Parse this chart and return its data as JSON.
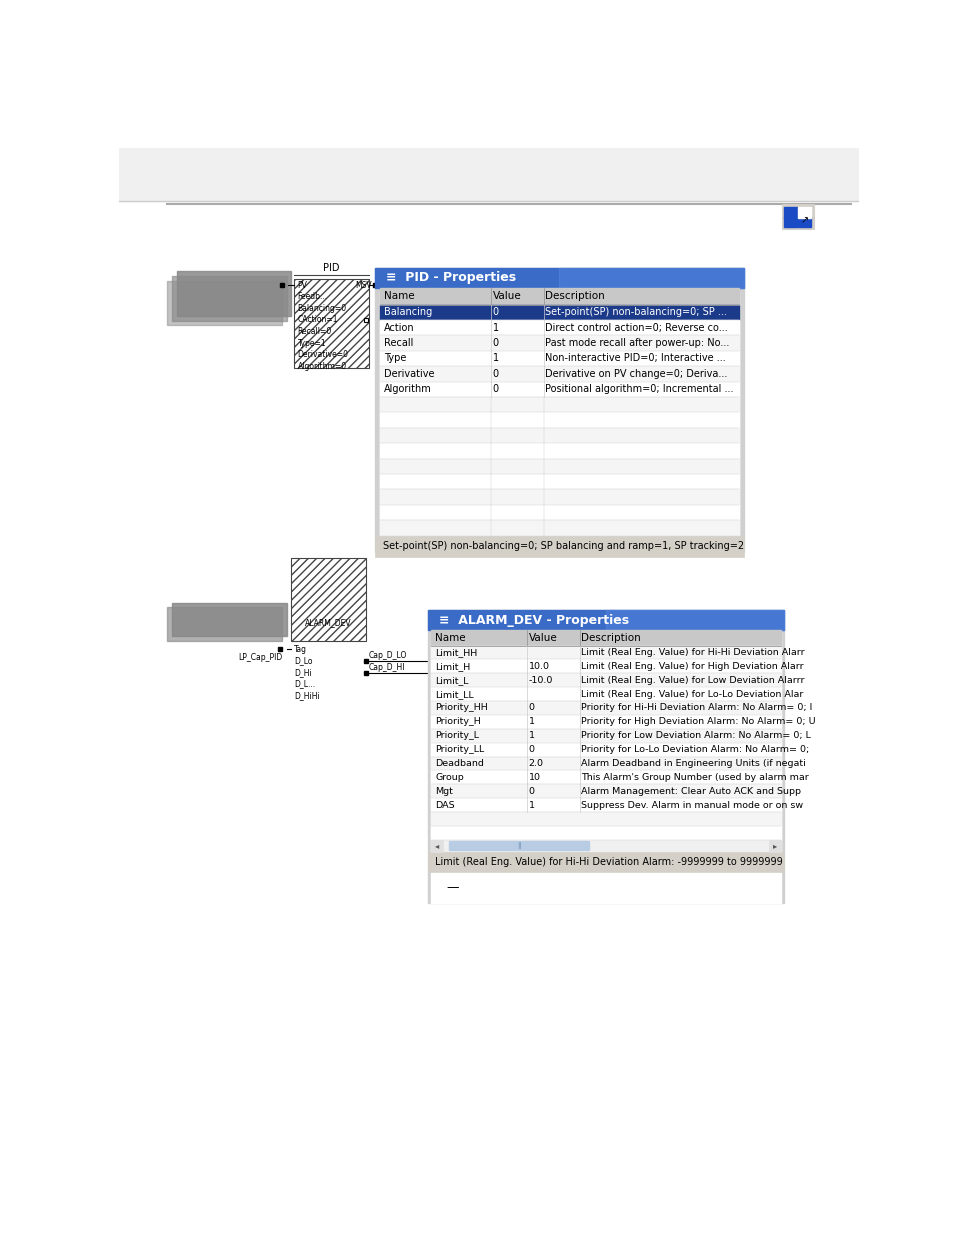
{
  "page_bg": "#ffffff",
  "pid_props": {
    "title": "PID - Properties",
    "title_bg": "#3a6bc7",
    "title_fg": "#ffffff",
    "header_bg": "#c8c8c8",
    "row_bg_highlight": "#1c3a8a",
    "row_fg_highlight": "#ffffff",
    "footer_bg": "#d4d0c8",
    "footer_text": "Set-point(SP) non-balancing=0; SP balancing and ramp=1, SP tracking=2",
    "col_names": [
      "Name",
      "Value",
      "Description"
    ],
    "rows": [
      [
        "Balancing",
        "0",
        "Set-point(SP) non-balancing=0; SP ..."
      ],
      [
        "Action",
        "1",
        "Direct control action=0; Reverse co..."
      ],
      [
        "Recall",
        "0",
        "Past mode recall after power-up: No..."
      ],
      [
        "Type",
        "1",
        "Non-interactive PID=0; Interactive ..."
      ],
      [
        "Derivative",
        "0",
        "Derivative on PV change=0; Deriva..."
      ],
      [
        "Algorithm",
        "0",
        "Positional algorithm=0; Incremental ..."
      ]
    ],
    "empty_rows": 9
  },
  "alarm_props": {
    "title": "ALARM_DEV - Properties",
    "title_bg": "#3a6bc7",
    "title_fg": "#ffffff",
    "header_bg": "#c8c8c8",
    "footer_bg": "#d4d0c8",
    "footer_text": "Limit (Real Eng. Value) for Hi-Hi Deviation Alarm: -9999999 to 9999999",
    "scrollbar_bg": "#b8cce4",
    "col_names": [
      "Name",
      "Value",
      "Description"
    ],
    "rows": [
      [
        "Limit_HH",
        "",
        "Limit (Real Eng. Value) for Hi-Hi Deviation Alarr"
      ],
      [
        "Limit_H",
        "10.0",
        "Limit (Real Eng. Value) for High Deviation Alarr"
      ],
      [
        "Limit_L",
        "-10.0",
        "Limit (Real Eng. Value) for Low Deviation Alarrr"
      ],
      [
        "Limit_LL",
        "",
        "Limit (Real Eng. Value) for Lo-Lo Deviation Alar"
      ],
      [
        "Priority_HH",
        "0",
        "Priority for Hi-Hi Deviation Alarm: No Alarm= 0; I"
      ],
      [
        "Priority_H",
        "1",
        "Priority for High Deviation Alarm: No Alarm= 0; U"
      ],
      [
        "Priority_L",
        "1",
        "Priority for Low Deviation Alarm: No Alarm= 0; L"
      ],
      [
        "Priority_LL",
        "0",
        "Priority for Lo-Lo Deviation Alarm: No Alarm= 0;"
      ],
      [
        "Deadband",
        "2.0",
        "Alarm Deadband in Engineering Units (if negati"
      ],
      [
        "Group",
        "10",
        "This Alarm's Group Number (used by alarm mar"
      ],
      [
        "Mgt",
        "0",
        "Alarm Management: Clear Auto ACK and Supp"
      ],
      [
        "DAS",
        "1",
        "Suppress Dev. Alarm in manual mode or on sw"
      ]
    ],
    "empty_rows": 2
  }
}
